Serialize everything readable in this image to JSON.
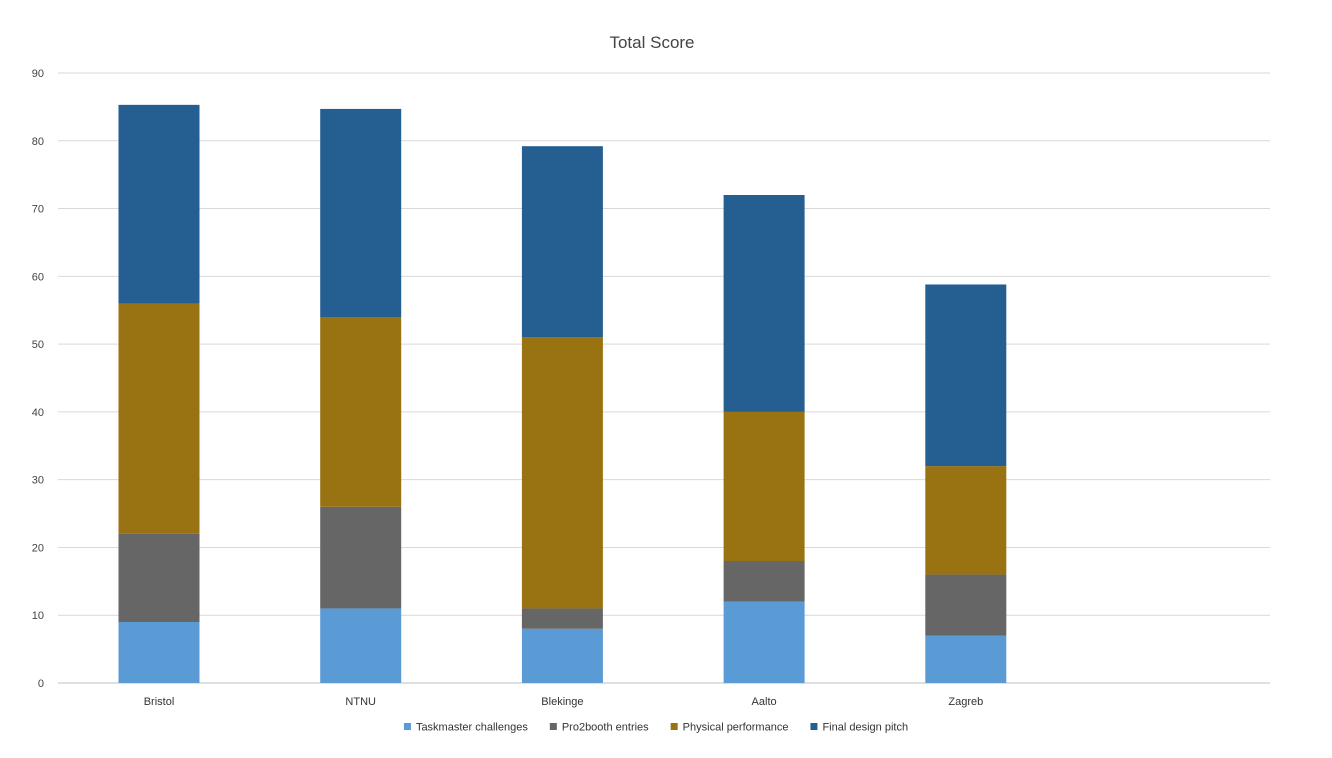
{
  "chart_data": {
    "type": "bar",
    "stacked": true,
    "title": "Total Score",
    "xlabel": "",
    "ylabel": "",
    "ylim": [
      0,
      90
    ],
    "yticks": [
      0,
      10,
      20,
      30,
      40,
      50,
      60,
      70,
      80,
      90
    ],
    "grid": true,
    "legend_position": "bottom",
    "categories": [
      "Bristol",
      "NTNU",
      "Blekinge",
      "Aalto",
      "Zagreb"
    ],
    "series": [
      {
        "name": "Taskmaster challenges",
        "color": "#5b9bd5",
        "values": [
          9,
          11,
          8,
          12,
          7
        ]
      },
      {
        "name": "Pro2booth entries",
        "color": "#666666",
        "values": [
          13,
          15,
          3,
          6,
          9
        ]
      },
      {
        "name": "Physical performance",
        "color": "#997212",
        "values": [
          34,
          28,
          40,
          22,
          16
        ]
      },
      {
        "name": "Final design pitch",
        "color": "#255e91",
        "values": [
          29.3,
          30.7,
          28.2,
          32,
          26.8
        ]
      }
    ]
  }
}
